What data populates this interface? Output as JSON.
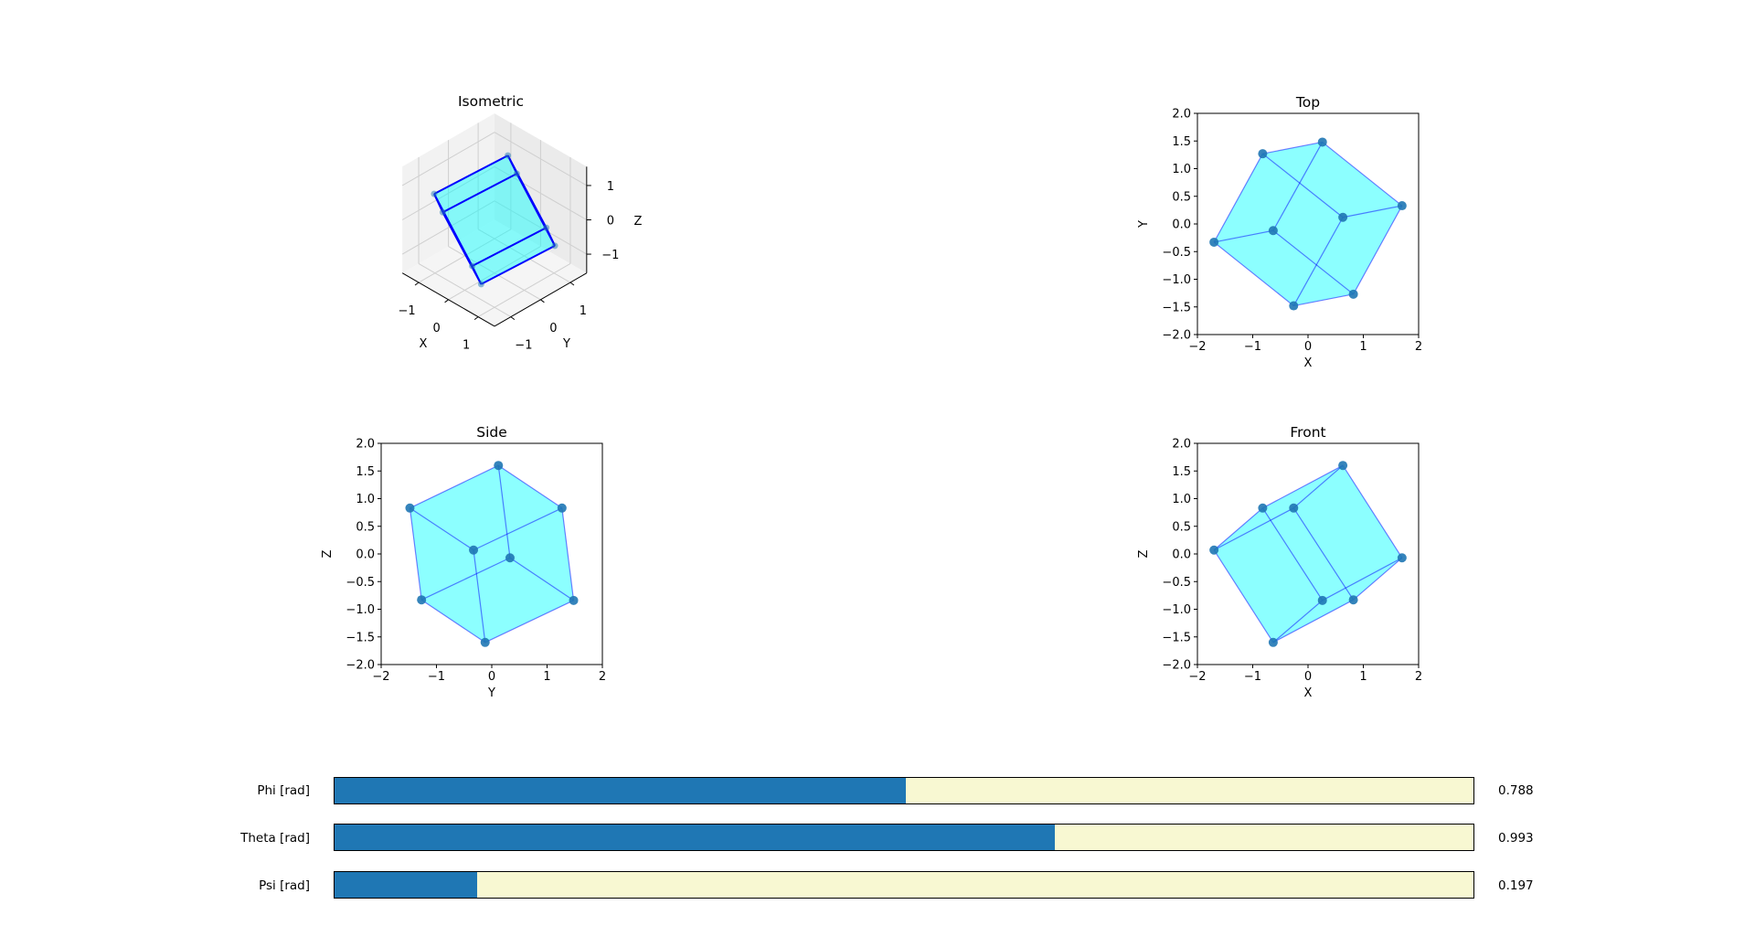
{
  "chart_data": [
    {
      "type": "scatter3d",
      "title": "Isometric",
      "xlabel": "X",
      "ylabel": "Y",
      "zlabel": "Z",
      "xticks": [
        "−1",
        "0",
        "1"
      ],
      "yticks": [
        "−1",
        "0",
        "1"
      ],
      "zticks": [
        "−1",
        "0",
        "1"
      ],
      "view": "isometric",
      "edge_color": "#0000ff",
      "face_color": "#00ffff",
      "grid": true
    },
    {
      "type": "scatter",
      "title": "Top",
      "xlabel": "X",
      "ylabel": "Y",
      "xlim": [
        -2,
        2
      ],
      "ylim": [
        -2,
        2
      ],
      "xticks": [
        "−2",
        "−1",
        "0",
        "1",
        "2"
      ],
      "yticks": [
        "−2.0",
        "−1.5",
        "−1.0",
        "−0.5",
        "0.0",
        "0.5",
        "1.0",
        "1.5",
        "2.0"
      ],
      "axes": [
        "x",
        "y"
      ],
      "grid": false
    },
    {
      "type": "scatter",
      "title": "Side",
      "xlabel": "Y",
      "ylabel": "Z",
      "xlim": [
        -2,
        2
      ],
      "ylim": [
        -2,
        2
      ],
      "xticks": [
        "−2",
        "−1",
        "0",
        "1",
        "2"
      ],
      "yticks": [
        "−2.0",
        "−1.5",
        "−1.0",
        "−0.5",
        "0.0",
        "0.5",
        "1.0",
        "1.5",
        "2.0"
      ],
      "axes": [
        "y",
        "z"
      ],
      "grid": false
    },
    {
      "type": "scatter",
      "title": "Front",
      "xlabel": "X",
      "ylabel": "Z",
      "xlim": [
        -2,
        2
      ],
      "ylim": [
        -2,
        2
      ],
      "xticks": [
        "−2",
        "−1",
        "0",
        "1",
        "2"
      ],
      "yticks": [
        "−2.0",
        "−1.5",
        "−1.0",
        "−0.5",
        "0.0",
        "0.5",
        "1.0",
        "1.5",
        "2.0"
      ],
      "axes": [
        "x",
        "z"
      ],
      "grid": false
    }
  ],
  "cube": {
    "vertices": [
      [
        -1.7,
        -0.33,
        0.07
      ],
      [
        -0.82,
        1.27,
        0.83
      ],
      [
        0.26,
        1.48,
        -0.84
      ],
      [
        -0.26,
        -1.48,
        0.83
      ],
      [
        1.7,
        0.33,
        -0.07
      ],
      [
        0.82,
        -1.27,
        -0.83
      ],
      [
        -0.63,
        -0.12,
        -1.6
      ],
      [
        0.63,
        0.12,
        1.6
      ]
    ],
    "edges": [
      [
        0,
        1
      ],
      [
        0,
        3
      ],
      [
        0,
        6
      ],
      [
        1,
        7
      ],
      [
        1,
        2
      ],
      [
        3,
        7
      ],
      [
        3,
        5
      ],
      [
        6,
        2
      ],
      [
        6,
        5
      ],
      [
        4,
        2
      ],
      [
        4,
        5
      ],
      [
        4,
        7
      ]
    ],
    "face_color": "#00ffff",
    "edge_color": "#0000ff",
    "point_color": "#1f77b4"
  },
  "sliders": [
    {
      "label": "Phi [rad]",
      "value": 0.788,
      "value_text": "0.788",
      "range": [
        0,
        1.5708
      ]
    },
    {
      "label": "Theta [rad]",
      "value": 0.993,
      "value_text": "0.993",
      "range": [
        0,
        1.5708
      ]
    },
    {
      "label": "Psi [rad]",
      "value": 0.197,
      "value_text": "0.197",
      "range": [
        0,
        1.5708
      ]
    }
  ],
  "colors": {
    "slider_fill": "#1f77b4",
    "slider_track": "#f8f8d2"
  }
}
